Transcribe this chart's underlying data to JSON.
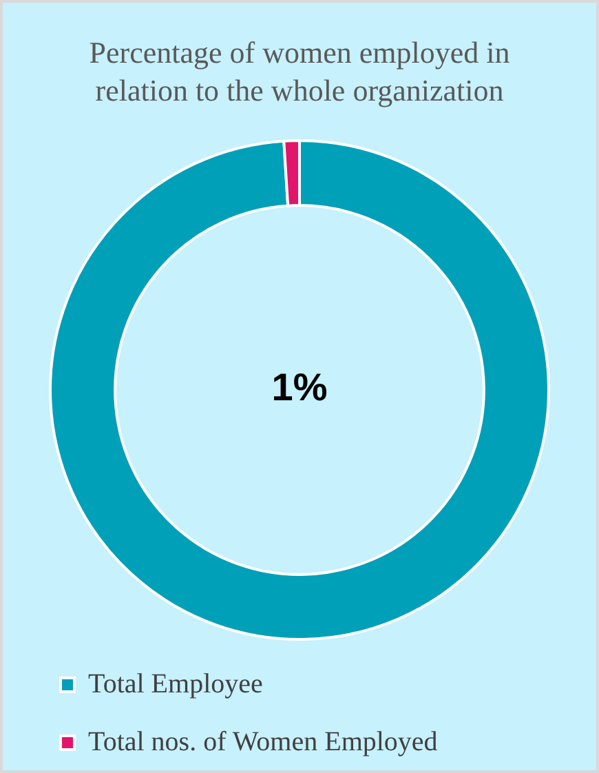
{
  "chart_data": {
    "type": "donut",
    "title": "Percentage of women employed in relation to the whole organization",
    "categories": [
      "Total Employee",
      "Total nos. of Women Employed"
    ],
    "values": [
      99,
      1
    ],
    "colors": [
      "#00a0b9",
      "#e0156b"
    ],
    "legend": "bottom left",
    "annotations": [
      "1%"
    ]
  }
}
